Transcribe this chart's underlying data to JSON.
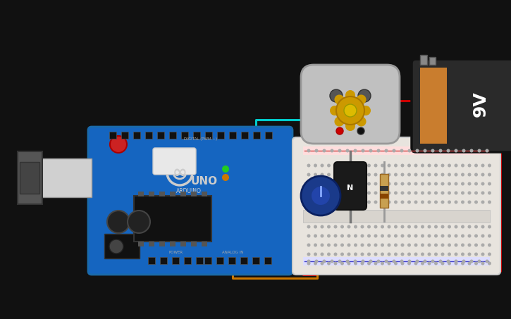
{
  "bg_color": "#111111",
  "arduino_color": "#1565C0",
  "breadboard_color": "#e8e4de",
  "battery_dark": "#2a2a2a",
  "battery_orange": "#c97d2e",
  "motor_gray": "#c0c0c0",
  "transistor_color": "#1a1a1a",
  "knob_color": "#1a3a8a",
  "resistor_color": "#c8a050",
  "wire_red": "#cc0000",
  "wire_black": "#222222",
  "wire_cyan": "#00cccc",
  "wire_orange": "#cc7700",
  "label_9v": "9V",
  "label_uno": "UNO",
  "label_arduino": "ARDUINO",
  "label_digital": "DIGITAL (PWM ~)",
  "label_power": "POWER",
  "label_analog": "ANALOG IN",
  "label_n": "N"
}
